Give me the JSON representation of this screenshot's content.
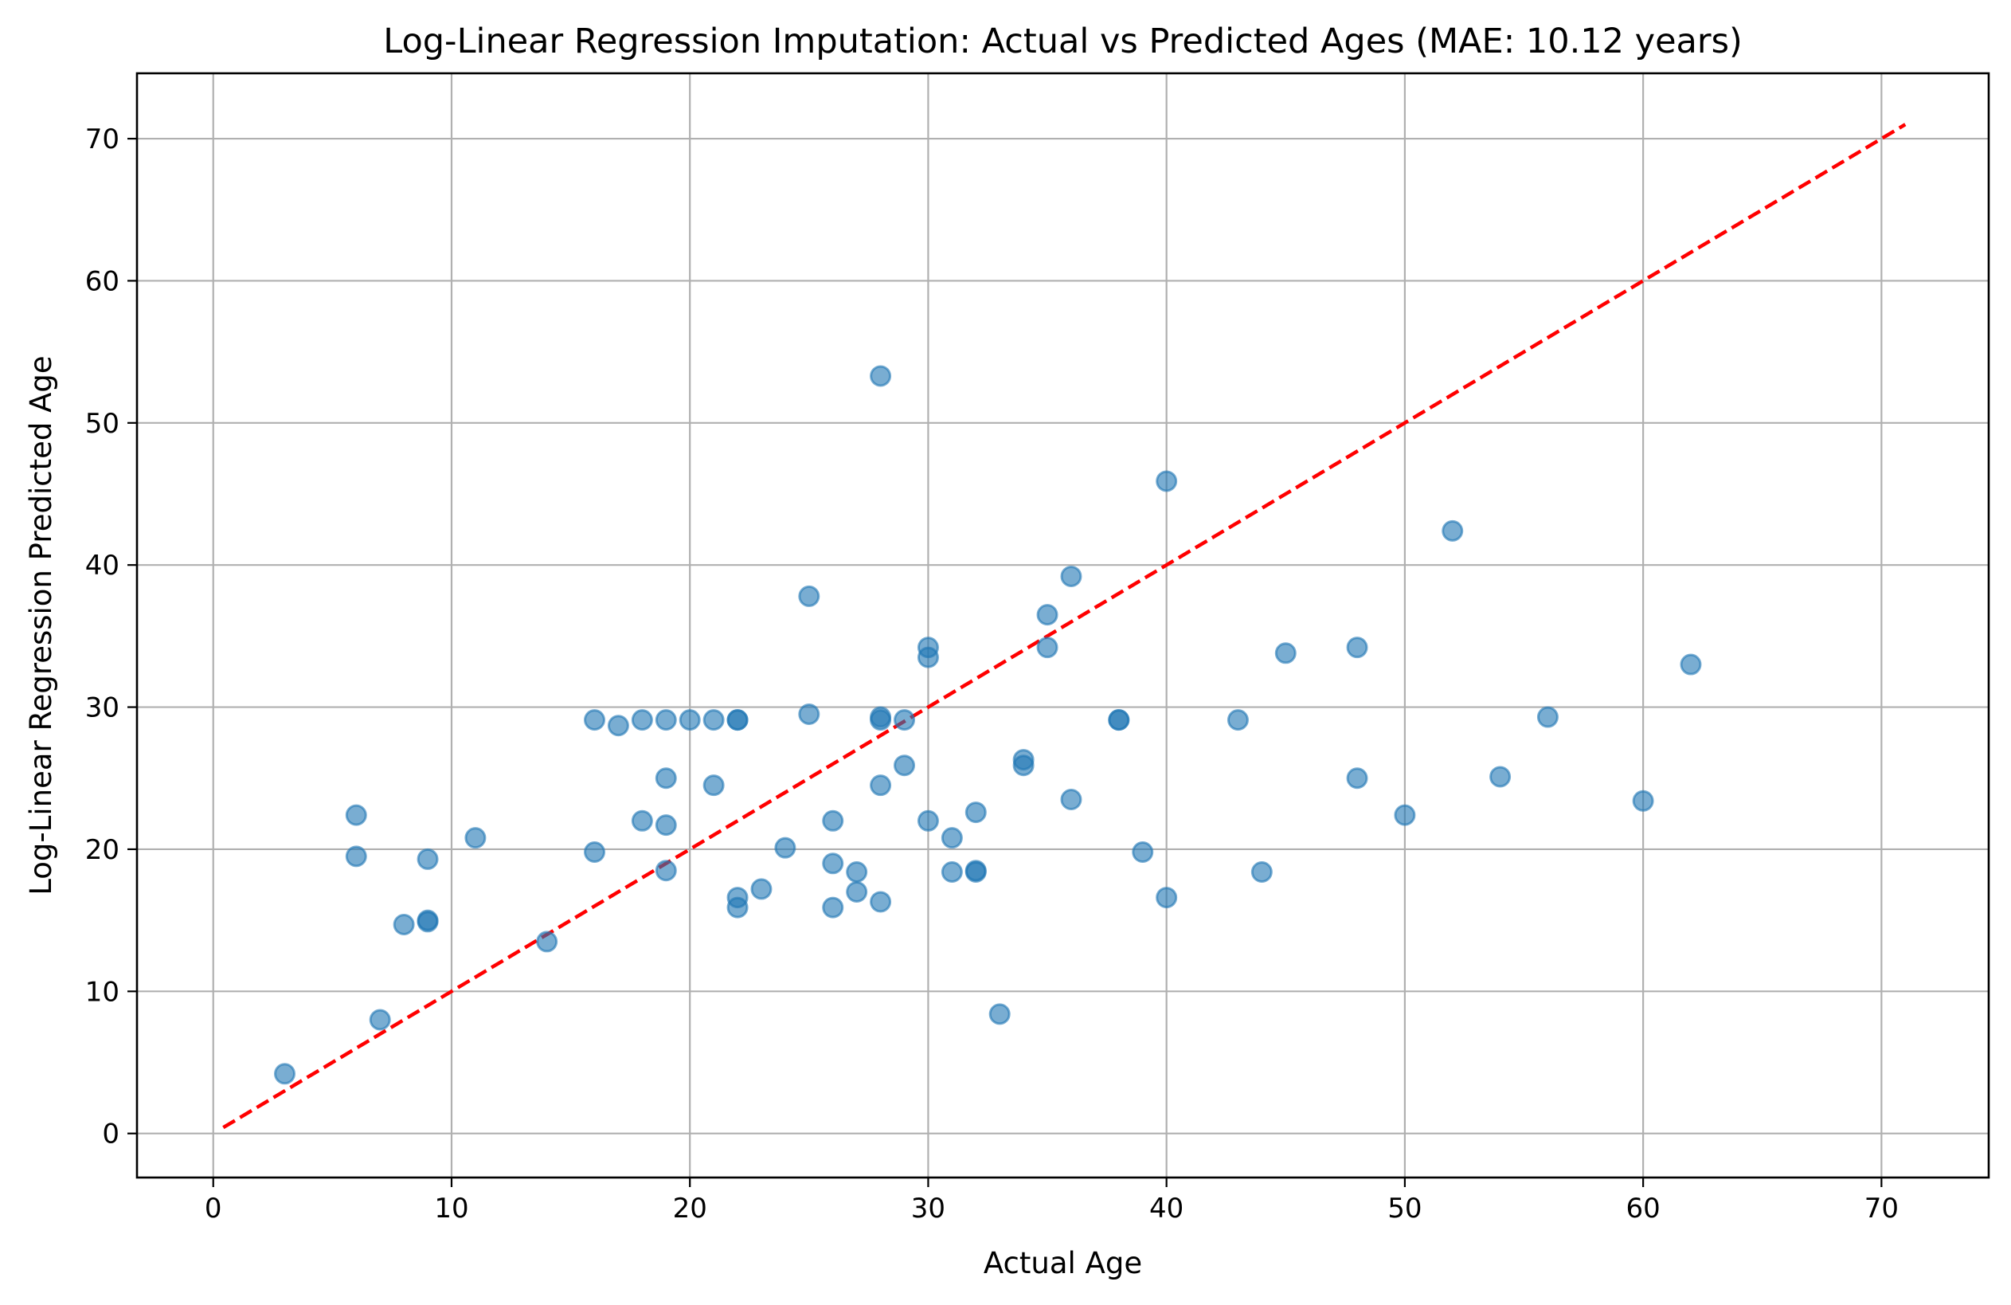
{
  "chart_data": {
    "type": "scatter",
    "title": "Log-Linear Regression Imputation: Actual vs Predicted Ages (MAE: 10.12 years)",
    "xlabel": "Actual Age",
    "ylabel": "Log-Linear Regression Predicted Age",
    "xlim": [
      -3.2,
      74.5
    ],
    "ylim": [
      -3.1,
      74.6
    ],
    "xticks": [
      0,
      10,
      20,
      30,
      40,
      50,
      60,
      70
    ],
    "yticks": [
      0,
      10,
      20,
      30,
      40,
      50,
      60,
      70
    ],
    "grid": true,
    "point_color": "#1f77b4",
    "point_alpha": 0.6,
    "reference_line": {
      "style": "dashed",
      "color": "#ff0000",
      "x": [
        0.42,
        71
      ],
      "y": [
        0.42,
        71
      ]
    },
    "points": [
      [
        3,
        4.2
      ],
      [
        6,
        22.4
      ],
      [
        6,
        19.5
      ],
      [
        7,
        8.0
      ],
      [
        8,
        14.7
      ],
      [
        9,
        15.0
      ],
      [
        9,
        14.9
      ],
      [
        9,
        19.3
      ],
      [
        11,
        20.8
      ],
      [
        14,
        13.5
      ],
      [
        16,
        29.1
      ],
      [
        16,
        19.8
      ],
      [
        17,
        28.7
      ],
      [
        18,
        29.1
      ],
      [
        18,
        22.0
      ],
      [
        19,
        29.1
      ],
      [
        19,
        25.0
      ],
      [
        19,
        21.7
      ],
      [
        19,
        18.5
      ],
      [
        20,
        29.1
      ],
      [
        21,
        29.1
      ],
      [
        21,
        24.5
      ],
      [
        22,
        29.1
      ],
      [
        22,
        29.1
      ],
      [
        22,
        16.6
      ],
      [
        22,
        15.9
      ],
      [
        23,
        17.2
      ],
      [
        24,
        20.1
      ],
      [
        25,
        37.8
      ],
      [
        25,
        29.5
      ],
      [
        26,
        22.0
      ],
      [
        26,
        19.0
      ],
      [
        26,
        15.9
      ],
      [
        27,
        18.4
      ],
      [
        27,
        17.0
      ],
      [
        28,
        53.3
      ],
      [
        28,
        29.3
      ],
      [
        28,
        29.1
      ],
      [
        28,
        24.5
      ],
      [
        28,
        16.3
      ],
      [
        29,
        29.1
      ],
      [
        29,
        25.9
      ],
      [
        30,
        34.2
      ],
      [
        30,
        33.5
      ],
      [
        30,
        22.0
      ],
      [
        31,
        20.8
      ],
      [
        31,
        18.4
      ],
      [
        32,
        22.6
      ],
      [
        32,
        18.5
      ],
      [
        32,
        18.4
      ],
      [
        33,
        8.4
      ],
      [
        34,
        26.3
      ],
      [
        34,
        25.9
      ],
      [
        35,
        36.5
      ],
      [
        35,
        34.2
      ],
      [
        36,
        39.2
      ],
      [
        36,
        23.5
      ],
      [
        38,
        29.1
      ],
      [
        38,
        29.1
      ],
      [
        39,
        19.8
      ],
      [
        40,
        45.9
      ],
      [
        40,
        16.6
      ],
      [
        43,
        29.1
      ],
      [
        44,
        18.4
      ],
      [
        45,
        33.8
      ],
      [
        48,
        34.2
      ],
      [
        48,
        25.0
      ],
      [
        50,
        22.4
      ],
      [
        52,
        42.4
      ],
      [
        54,
        25.1
      ],
      [
        56,
        29.3
      ],
      [
        60,
        23.4
      ],
      [
        62,
        33.0
      ]
    ]
  }
}
